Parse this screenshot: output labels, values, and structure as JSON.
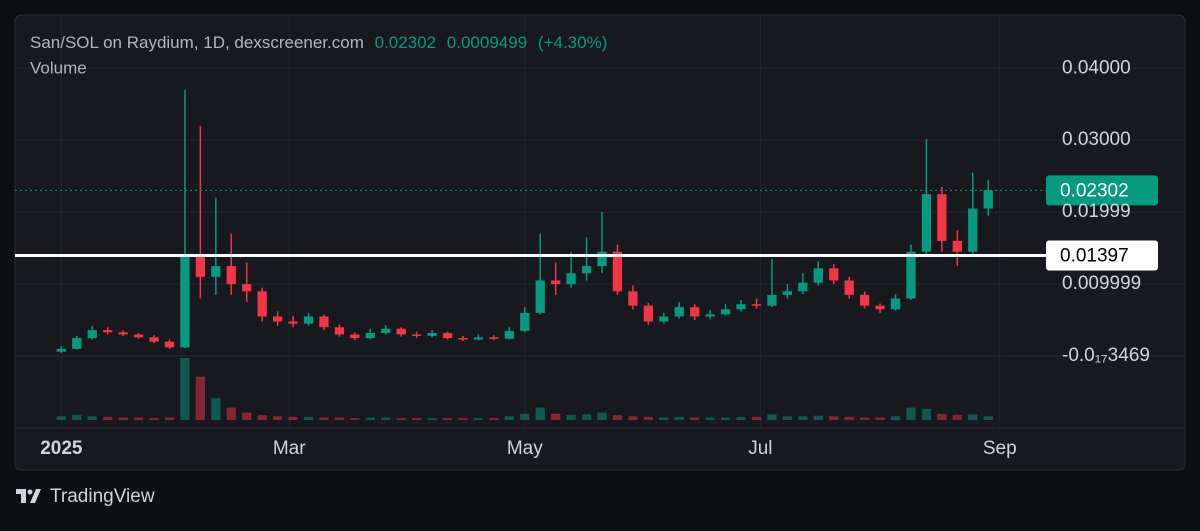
{
  "chart_data": {
    "type": "candlestick",
    "title": "San/SOL on Raydium, 1D, dexscreener.com",
    "last_price": "0.02302",
    "change": "0.0009499",
    "change_pct": "(+4.30%)",
    "volume_label": "Volume",
    "brand": "TradingView",
    "x": [
      0,
      4,
      8,
      12,
      16,
      20,
      24,
      28,
      32,
      36,
      40,
      44,
      48,
      52,
      56,
      60,
      64,
      68,
      72,
      76,
      80,
      84,
      88,
      92,
      96,
      100,
      104,
      108,
      112,
      116,
      120,
      124,
      128,
      132,
      136,
      140,
      144,
      148,
      152,
      156,
      160,
      164,
      168,
      172,
      176,
      180,
      184,
      188,
      192,
      196,
      200,
      204,
      208,
      212,
      216,
      220,
      224,
      228,
      232,
      236,
      240
    ],
    "open": [
      0.0006,
      0.001,
      0.0025,
      0.0036,
      0.0033,
      0.003,
      0.0026,
      0.002,
      0.0012,
      0.014,
      0.011,
      0.0125,
      0.01,
      0.009,
      0.0055,
      0.0048,
      0.0045,
      0.0055,
      0.004,
      0.003,
      0.0025,
      0.0032,
      0.0038,
      0.003,
      0.0028,
      0.0032,
      0.0025,
      0.0023,
      0.0026,
      0.0024,
      0.0035,
      0.006,
      0.0105,
      0.01,
      0.0115,
      0.0125,
      0.0145,
      0.009,
      0.007,
      0.0048,
      0.0055,
      0.0068,
      0.0055,
      0.0058,
      0.0065,
      0.0072,
      0.007,
      0.0085,
      0.009,
      0.0102,
      0.0122,
      0.0105,
      0.0085,
      0.007,
      0.0065,
      0.008,
      0.0145,
      0.0225,
      0.016,
      0.0145,
      0.0205
    ],
    "high": [
      0.0014,
      0.0028,
      0.0042,
      0.004,
      0.0036,
      0.0032,
      0.0029,
      0.0023,
      0.037,
      0.032,
      0.022,
      0.017,
      0.013,
      0.0095,
      0.0062,
      0.0056,
      0.006,
      0.0058,
      0.0044,
      0.0033,
      0.0038,
      0.0043,
      0.004,
      0.0034,
      0.0036,
      0.0034,
      0.0028,
      0.003,
      0.0029,
      0.004,
      0.0068,
      0.017,
      0.013,
      0.0145,
      0.0165,
      0.02,
      0.0155,
      0.0098,
      0.0074,
      0.006,
      0.0075,
      0.0072,
      0.0064,
      0.0072,
      0.0078,
      0.008,
      0.0135,
      0.01,
      0.0115,
      0.0132,
      0.0128,
      0.011,
      0.009,
      0.0073,
      0.0086,
      0.0155,
      0.0302,
      0.0235,
      0.0175,
      0.0255,
      0.0245
    ],
    "low": [
      0.0004,
      0.0009,
      0.0023,
      0.003,
      0.0028,
      0.0024,
      0.0018,
      0.001,
      0.0011,
      0.008,
      0.0085,
      0.0085,
      0.0075,
      0.0048,
      0.0042,
      0.004,
      0.0042,
      0.0036,
      0.0027,
      0.0022,
      0.0023,
      0.003,
      0.0027,
      0.0025,
      0.0026,
      0.0023,
      0.0021,
      0.0022,
      0.0022,
      0.0023,
      0.0033,
      0.0058,
      0.0085,
      0.0095,
      0.0105,
      0.0115,
      0.0085,
      0.0065,
      0.0043,
      0.0045,
      0.0052,
      0.005,
      0.0051,
      0.0056,
      0.0062,
      0.0066,
      0.0068,
      0.008,
      0.0086,
      0.0098,
      0.01,
      0.008,
      0.0066,
      0.006,
      0.0063,
      0.0078,
      0.014,
      0.0145,
      0.0125,
      0.014,
      0.0195
    ],
    "close": [
      0.001,
      0.0025,
      0.0036,
      0.0033,
      0.003,
      0.0026,
      0.002,
      0.0012,
      0.014,
      0.011,
      0.0125,
      0.01,
      0.009,
      0.0055,
      0.0048,
      0.0045,
      0.0055,
      0.004,
      0.003,
      0.0025,
      0.0032,
      0.0038,
      0.003,
      0.0028,
      0.0032,
      0.0025,
      0.0023,
      0.0026,
      0.0024,
      0.0035,
      0.006,
      0.0105,
      0.01,
      0.0115,
      0.0125,
      0.0145,
      0.009,
      0.007,
      0.0048,
      0.0055,
      0.0068,
      0.0055,
      0.0058,
      0.0065,
      0.0072,
      0.007,
      0.0085,
      0.009,
      0.0102,
      0.0122,
      0.0105,
      0.0085,
      0.007,
      0.0065,
      0.008,
      0.0145,
      0.0225,
      0.016,
      0.0145,
      0.0205,
      0.02302
    ],
    "volume": [
      6,
      8,
      6,
      5,
      4,
      4,
      3,
      4,
      100,
      70,
      35,
      20,
      12,
      8,
      6,
      5,
      5,
      4,
      4,
      3,
      4,
      4,
      3,
      3,
      3,
      3,
      3,
      3,
      3,
      6,
      10,
      20,
      10,
      8,
      9,
      12,
      8,
      6,
      5,
      4,
      5,
      4,
      4,
      4,
      5,
      5,
      9,
      6,
      6,
      7,
      6,
      5,
      4,
      4,
      6,
      20,
      18,
      10,
      8,
      9,
      6
    ],
    "vlim": [
      0,
      100
    ],
    "up_color": "#089981",
    "down_color": "#f23645",
    "xlim": [
      -12,
      256
    ],
    "xticks": [
      {
        "value": 0,
        "label": "2025"
      },
      {
        "value": 59,
        "label": "Mar"
      },
      {
        "value": 120,
        "label": "May"
      },
      {
        "value": 181,
        "label": "Jul"
      },
      {
        "value": 243,
        "label": "Sep"
      }
    ],
    "ylim": [
      -0.01,
      0.0474
    ],
    "yticks": [
      {
        "value": -3.469e-18,
        "label": "-0.0₁₇3469"
      },
      0.009999,
      0.01999,
      {
        "value": 0.03,
        "label": "0.03000"
      },
      {
        "value": 0.04,
        "label": "0.04000"
      }
    ],
    "grid": true,
    "price_line": {
      "value": 0.02302,
      "color": "#089981"
    },
    "horizontal_line": {
      "value": 0.01397,
      "color": "#ffffff"
    }
  }
}
